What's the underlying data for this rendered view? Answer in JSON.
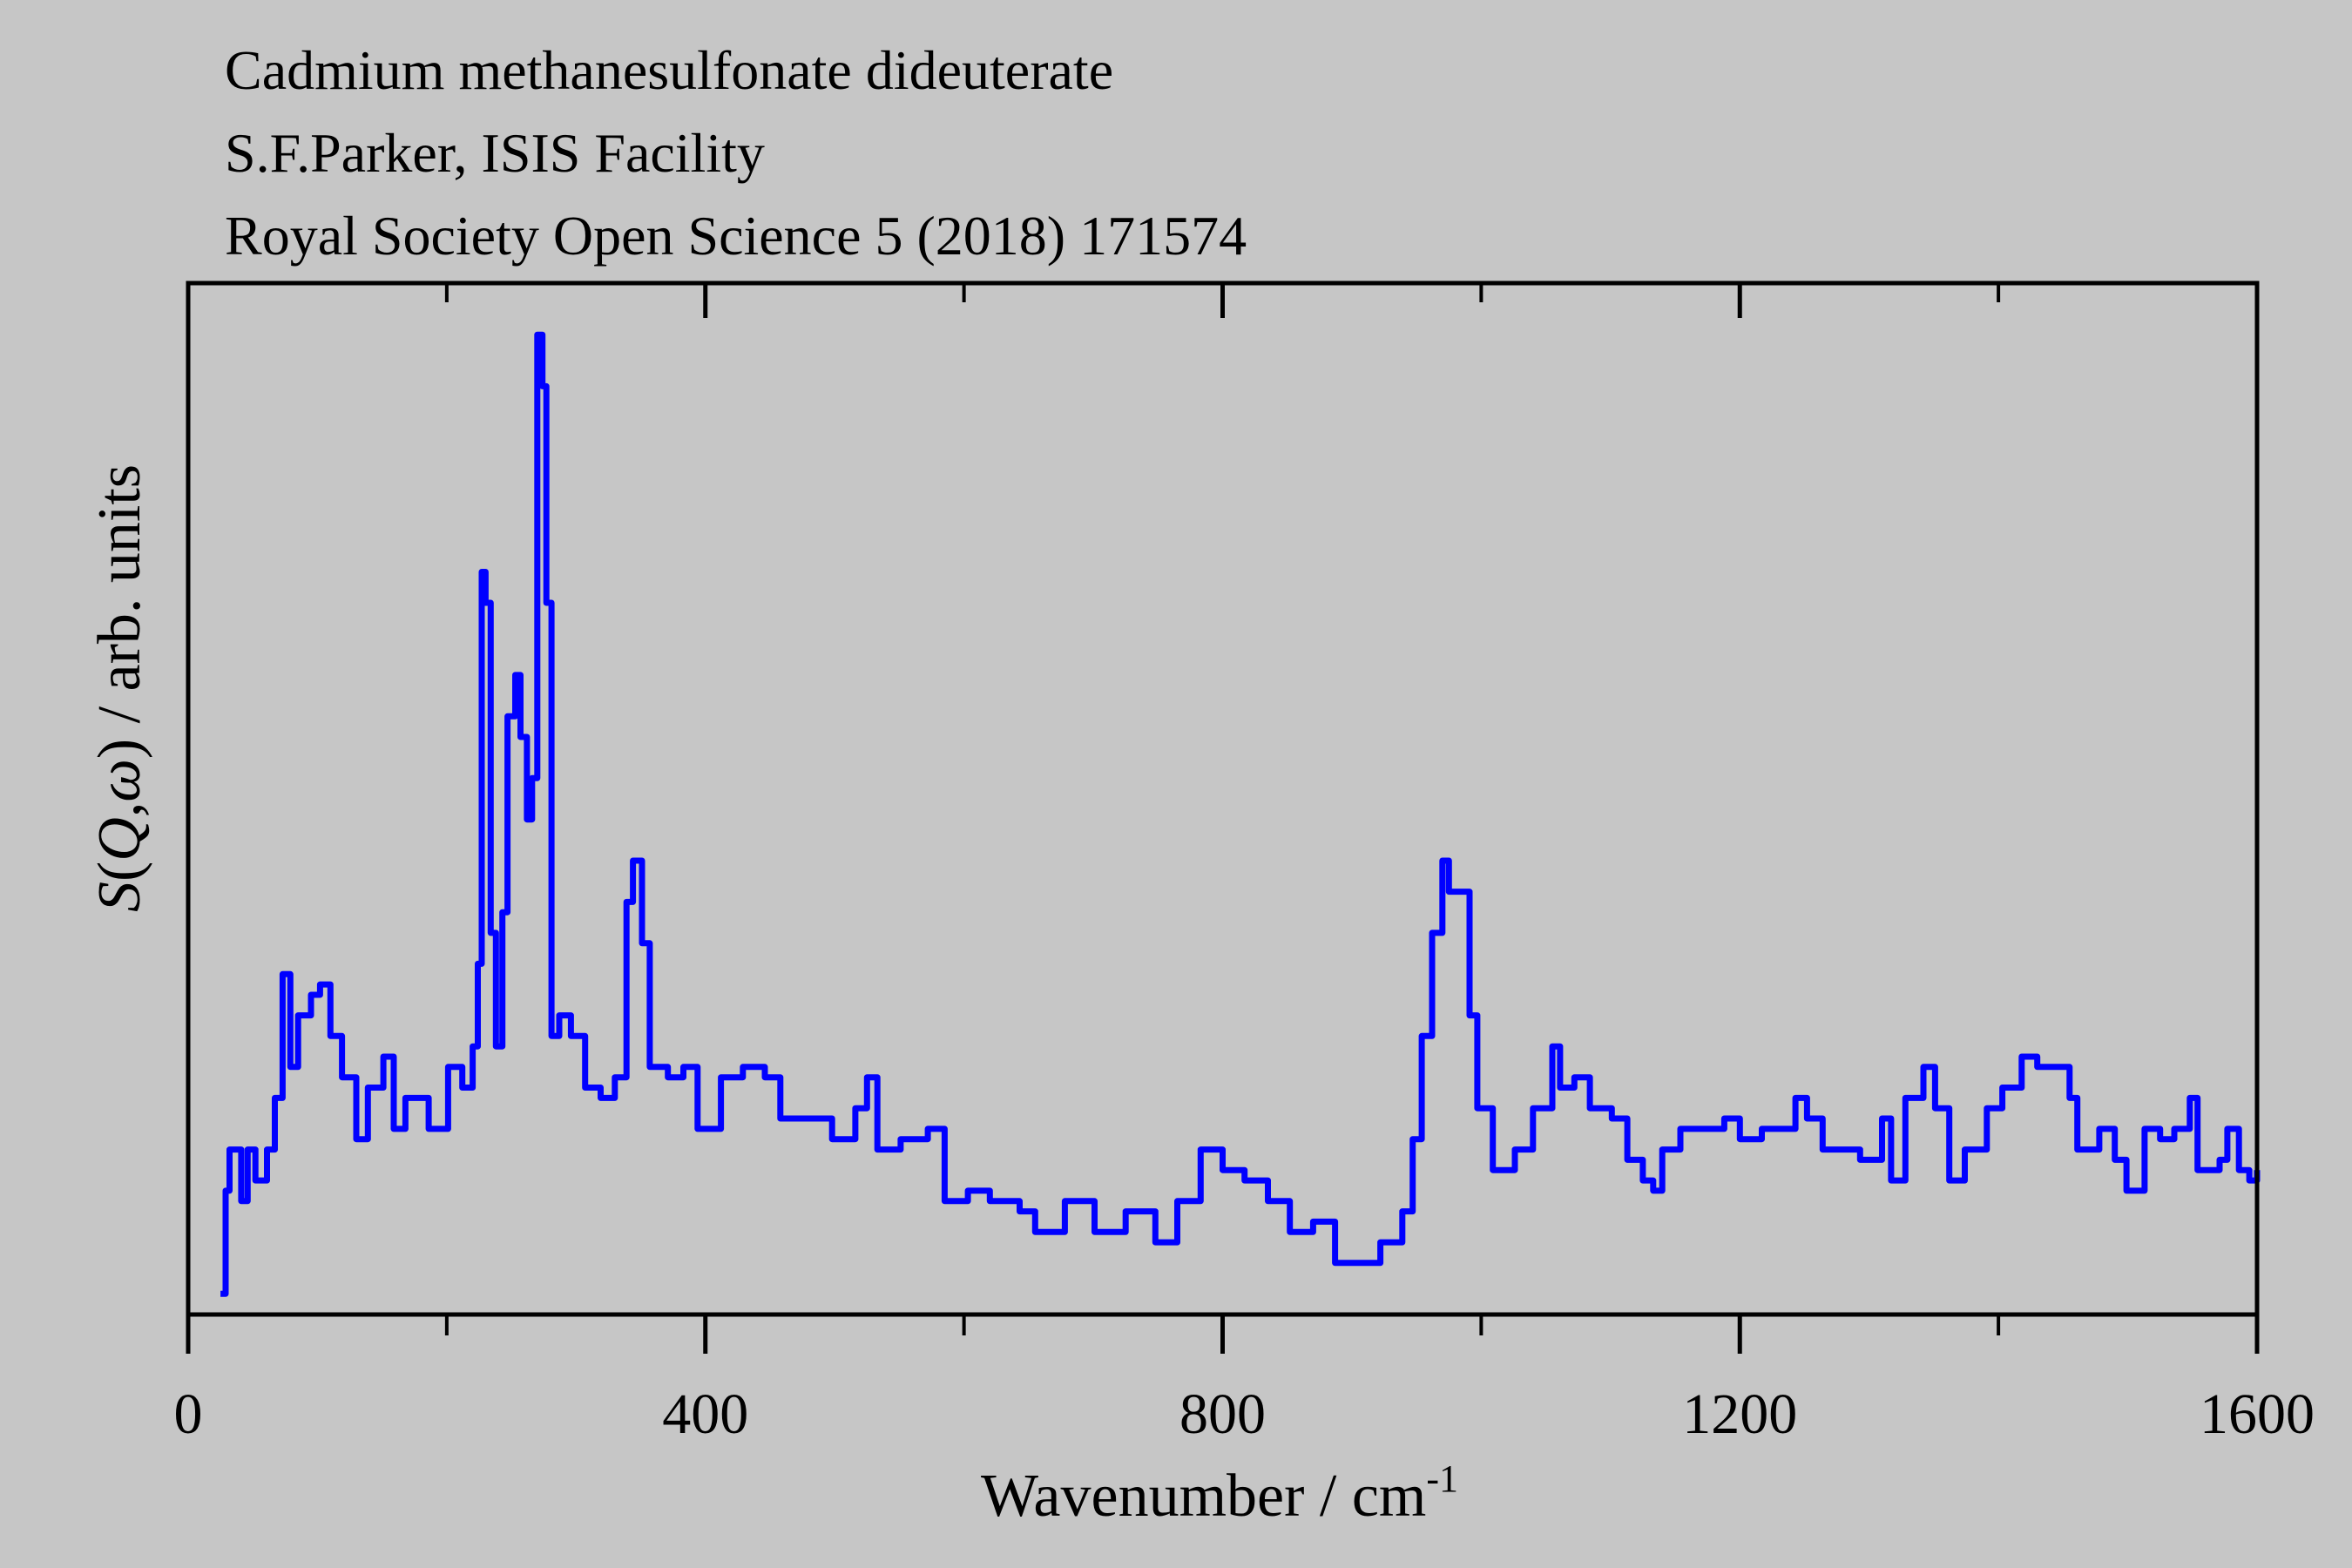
{
  "header": {
    "lines": [
      "Cadmium methanesulfonate dideuterate",
      "S.F.Parker, ISIS Facility",
      "Royal Society Open Science 5 (2018) 171574"
    ]
  },
  "colors": {
    "background": "#c6c6c6",
    "series": "#0000ff",
    "axis": "#000000"
  },
  "chart_data": {
    "type": "line",
    "step": true,
    "title": "Cadmium methanesulfonate dideuterate",
    "xlabel": {
      "main": "Wavenumber / cm",
      "sup": "-1"
    },
    "ylabel": {
      "s": "S",
      "open": "(",
      "q": "Q",
      "comma": ",",
      "w": "ω",
      "close": ")",
      "rest": " / arb. units"
    },
    "xlim": [
      0,
      1600
    ],
    "ylim": [
      0,
      100
    ],
    "x_major_ticks": [
      0,
      400,
      800,
      1200,
      1600
    ],
    "x_tick_labels": [
      "0",
      "400",
      "800",
      "1200",
      "1600"
    ],
    "x_minor_ticks": [
      200,
      600,
      1000,
      1400
    ],
    "grid": false,
    "series": [
      {
        "name": "S(Q,ω)",
        "points": [
          [
            25,
            2
          ],
          [
            29,
            12
          ],
          [
            32,
            16
          ],
          [
            41,
            11
          ],
          [
            46,
            16
          ],
          [
            52,
            13
          ],
          [
            61,
            16
          ],
          [
            67,
            21
          ],
          [
            73,
            33
          ],
          [
            79,
            24
          ],
          [
            85,
            29
          ],
          [
            95,
            31
          ],
          [
            102,
            32
          ],
          [
            110,
            27
          ],
          [
            119,
            23
          ],
          [
            130,
            17
          ],
          [
            139,
            22
          ],
          [
            151,
            25
          ],
          [
            159,
            18
          ],
          [
            168,
            21
          ],
          [
            186,
            18
          ],
          [
            201,
            24
          ],
          [
            212,
            22
          ],
          [
            220,
            26
          ],
          [
            224,
            34
          ],
          [
            227,
            72
          ],
          [
            230,
            69
          ],
          [
            234,
            37
          ],
          [
            238,
            26
          ],
          [
            243,
            39
          ],
          [
            247,
            58
          ],
          [
            253,
            62
          ],
          [
            257,
            56
          ],
          [
            262,
            48
          ],
          [
            266,
            52
          ],
          [
            270,
            95
          ],
          [
            274,
            90
          ],
          [
            277,
            69
          ],
          [
            281,
            27
          ],
          [
            287,
            29
          ],
          [
            296,
            27
          ],
          [
            307,
            22
          ],
          [
            319,
            21
          ],
          [
            330,
            23
          ],
          [
            339,
            40
          ],
          [
            344,
            44
          ],
          [
            351,
            36
          ],
          [
            357,
            24
          ],
          [
            371,
            23
          ],
          [
            383,
            24
          ],
          [
            394,
            18
          ],
          [
            412,
            23
          ],
          [
            429,
            24
          ],
          [
            446,
            23
          ],
          [
            458,
            19
          ],
          [
            481,
            19
          ],
          [
            498,
            17
          ],
          [
            516,
            20
          ],
          [
            525,
            23
          ],
          [
            533,
            16
          ],
          [
            551,
            17
          ],
          [
            572,
            18
          ],
          [
            585,
            11
          ],
          [
            603,
            12
          ],
          [
            620,
            11
          ],
          [
            643,
            10
          ],
          [
            655,
            8
          ],
          [
            678,
            11
          ],
          [
            701,
            8
          ],
          [
            725,
            10
          ],
          [
            748,
            7
          ],
          [
            765,
            11
          ],
          [
            783,
            16
          ],
          [
            800,
            14
          ],
          [
            817,
            13
          ],
          [
            835,
            11
          ],
          [
            852,
            8
          ],
          [
            870,
            9
          ],
          [
            887,
            5
          ],
          [
            904,
            5
          ],
          [
            922,
            7
          ],
          [
            939,
            10
          ],
          [
            947,
            17
          ],
          [
            954,
            27
          ],
          [
            962,
            37
          ],
          [
            970,
            44
          ],
          [
            975,
            41
          ],
          [
            986,
            41
          ],
          [
            991,
            29
          ],
          [
            997,
            20
          ],
          [
            1009,
            14
          ],
          [
            1026,
            16
          ],
          [
            1040,
            20
          ],
          [
            1055,
            26
          ],
          [
            1061,
            22
          ],
          [
            1072,
            23
          ],
          [
            1084,
            20
          ],
          [
            1101,
            19
          ],
          [
            1113,
            15
          ],
          [
            1125,
            13
          ],
          [
            1133,
            12
          ],
          [
            1140,
            16
          ],
          [
            1154,
            18
          ],
          [
            1171,
            18
          ],
          [
            1188,
            19
          ],
          [
            1200,
            17
          ],
          [
            1217,
            18
          ],
          [
            1235,
            18
          ],
          [
            1243,
            21
          ],
          [
            1252,
            19
          ],
          [
            1264,
            16
          ],
          [
            1281,
            16
          ],
          [
            1293,
            15
          ],
          [
            1310,
            19
          ],
          [
            1317,
            13
          ],
          [
            1328,
            21
          ],
          [
            1342,
            24
          ],
          [
            1351,
            20
          ],
          [
            1362,
            13
          ],
          [
            1374,
            16
          ],
          [
            1391,
            20
          ],
          [
            1403,
            22
          ],
          [
            1418,
            25
          ],
          [
            1430,
            24
          ],
          [
            1446,
            24
          ],
          [
            1455,
            21
          ],
          [
            1461,
            16
          ],
          [
            1478,
            18
          ],
          [
            1490,
            15
          ],
          [
            1499,
            12
          ],
          [
            1513,
            18
          ],
          [
            1525,
            17
          ],
          [
            1536,
            18
          ],
          [
            1548,
            21
          ],
          [
            1554,
            14
          ],
          [
            1571,
            15
          ],
          [
            1577,
            18
          ],
          [
            1586,
            14
          ],
          [
            1594,
            13
          ],
          [
            1600,
            14
          ]
        ]
      }
    ]
  }
}
